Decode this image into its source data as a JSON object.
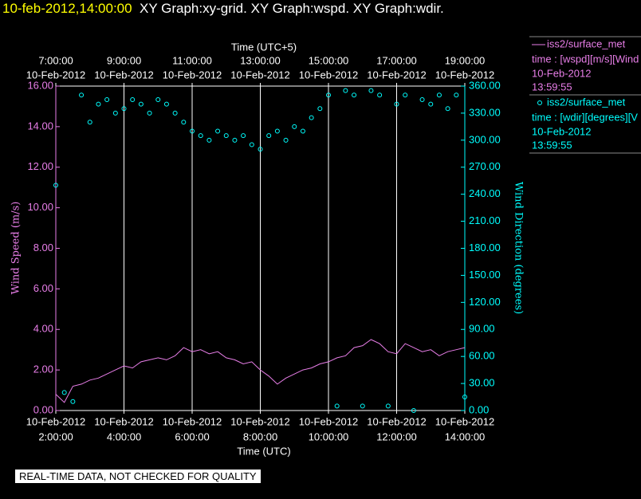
{
  "chart_data": {
    "type": "line-scatter",
    "timestamp": "10-feb-2012,14:00:00",
    "title": "XY Graph:xy-grid.  XY Graph:wspd.  XY Graph:wdir.",
    "x_label": "Time (UTC)",
    "x2_label": "Time (UTC+5)",
    "y_label": "Wind Speed (m/s)",
    "y2_label": "Wind Direction (degrees)",
    "note": "REAL-TIME DATA, NOT CHECKED FOR QUALITY",
    "xlim": [
      2,
      14
    ],
    "xticks": [
      {
        "value": 2,
        "label": "2:00:00",
        "date": "10-Feb-2012"
      },
      {
        "value": 4,
        "label": "4:00:00",
        "date": "10-Feb-2012"
      },
      {
        "value": 6,
        "label": "6:00:00",
        "date": "10-Feb-2012"
      },
      {
        "value": 8,
        "label": "8:00:00",
        "date": "10-Feb-2012"
      },
      {
        "value": 10,
        "label": "10:00:00",
        "date": "10-Feb-2012"
      },
      {
        "value": 12,
        "label": "12:00:00",
        "date": "10-Feb-2012"
      },
      {
        "value": 14,
        "label": "14:00:00",
        "date": "10-Feb-2012"
      }
    ],
    "x2lim": [
      7,
      19
    ],
    "x2ticks": [
      {
        "value": 7,
        "label": "7:00:00",
        "date": "10-Feb-2012"
      },
      {
        "value": 9,
        "label": "9:00:00",
        "date": "10-Feb-2012"
      },
      {
        "value": 11,
        "label": "11:00:00",
        "date": "10-Feb-2012"
      },
      {
        "value": 13,
        "label": "13:00:00",
        "date": "10-Feb-2012"
      },
      {
        "value": 15,
        "label": "15:00:00",
        "date": "10-Feb-2012"
      },
      {
        "value": 17,
        "label": "17:00:00",
        "date": "10-Feb-2012"
      },
      {
        "value": 19,
        "label": "19:00:00",
        "date": "10-Feb-2012"
      }
    ],
    "ylim": [
      0,
      16
    ],
    "yticks": [
      {
        "value": 0,
        "label": "0.00"
      },
      {
        "value": 2,
        "label": "2.00"
      },
      {
        "value": 4,
        "label": "4.00"
      },
      {
        "value": 6,
        "label": "6.00"
      },
      {
        "value": 8,
        "label": "8.00"
      },
      {
        "value": 10,
        "label": "10.00"
      },
      {
        "value": 12,
        "label": "12.00"
      },
      {
        "value": 14,
        "label": "14.00"
      },
      {
        "value": 16,
        "label": "16.00"
      }
    ],
    "y2lim": [
      0,
      360
    ],
    "y2ticks": [
      {
        "value": 0,
        "label": "0.00"
      },
      {
        "value": 30,
        "label": "30.00"
      },
      {
        "value": 60,
        "label": "60.00"
      },
      {
        "value": 90,
        "label": "90.00"
      },
      {
        "value": 120,
        "label": "120.00"
      },
      {
        "value": 150,
        "label": "150.00"
      },
      {
        "value": 180,
        "label": "180.00"
      },
      {
        "value": 210,
        "label": "210.00"
      },
      {
        "value": 240,
        "label": "240.00"
      },
      {
        "value": 270,
        "label": "270.00"
      },
      {
        "value": 300,
        "label": "300.00"
      },
      {
        "value": 330,
        "label": "330.00"
      },
      {
        "value": 360,
        "label": "360.00"
      }
    ],
    "grid": true,
    "x": [
      2,
      2.25,
      2.5,
      2.75,
      3,
      3.25,
      3.5,
      3.75,
      4,
      4.25,
      4.5,
      4.75,
      5,
      5.25,
      5.5,
      5.75,
      6,
      6.25,
      6.5,
      6.75,
      7,
      7.25,
      7.5,
      7.75,
      8,
      8.25,
      8.5,
      8.75,
      9,
      9.25,
      9.5,
      9.75,
      10,
      10.25,
      10.5,
      10.75,
      11,
      11.25,
      11.5,
      11.75,
      12,
      12.25,
      12.5,
      12.75,
      13,
      13.25,
      13.5,
      13.75,
      14
    ],
    "series": [
      {
        "name": "iss2/surface_met",
        "variable": "time : [wspd][m/s][Wind",
        "date": "10-Feb-2012",
        "time": "13:59:55",
        "color": "#e87ee8",
        "style": "line",
        "values": [
          0.8,
          0.4,
          1.2,
          1.3,
          1.5,
          1.6,
          1.8,
          2.0,
          2.2,
          2.1,
          2.4,
          2.5,
          2.6,
          2.5,
          2.7,
          3.1,
          2.9,
          3.0,
          2.8,
          2.9,
          2.6,
          2.5,
          2.3,
          2.4,
          2.0,
          1.7,
          1.3,
          1.6,
          1.8,
          2.0,
          2.1,
          2.3,
          2.4,
          2.6,
          2.7,
          3.1,
          3.2,
          3.5,
          3.3,
          2.9,
          2.8,
          3.3,
          3.1,
          2.9,
          3.0,
          2.7,
          2.9,
          3.0,
          3.1
        ]
      },
      {
        "name": "iss2/surface_met",
        "variable": "time : [wdir][degrees][V",
        "date": "10-Feb-2012",
        "time": "13:59:55",
        "color": "#00ffff",
        "style": "circle",
        "axis": "y2",
        "values": [
          250,
          20,
          10,
          350,
          320,
          340,
          345,
          330,
          335,
          345,
          340,
          330,
          345,
          340,
          330,
          320,
          310,
          305,
          300,
          310,
          305,
          300,
          305,
          295,
          290,
          305,
          310,
          300,
          315,
          310,
          325,
          335,
          350,
          5,
          355,
          350,
          5,
          355,
          350,
          5,
          340,
          350,
          0,
          345,
          340,
          350,
          335,
          350,
          15
        ]
      }
    ]
  }
}
